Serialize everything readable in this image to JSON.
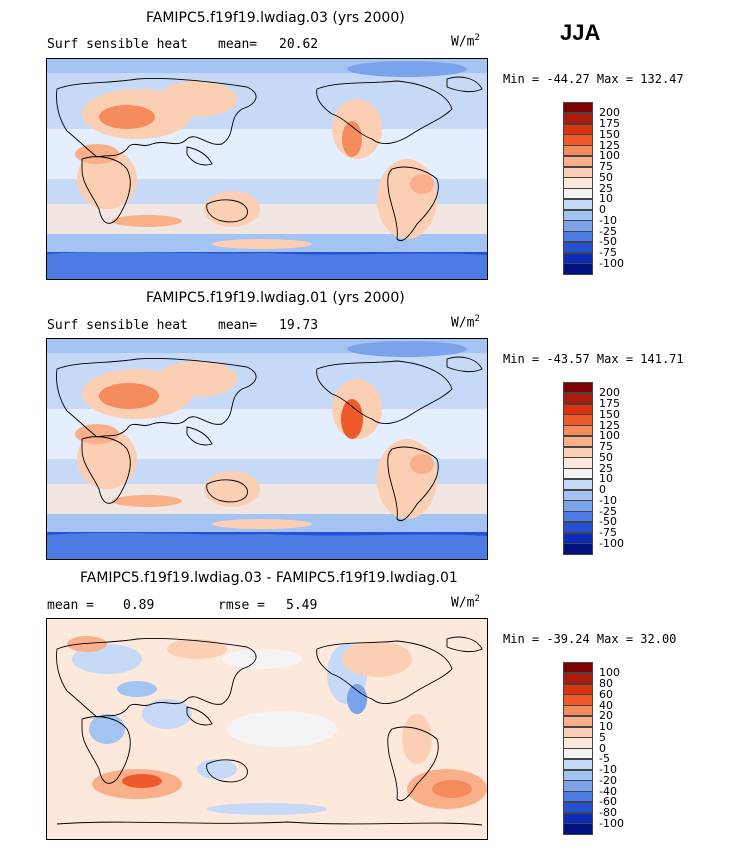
{
  "season": "JJA",
  "panels": [
    {
      "title": "FAMIPC5.f19f19.lwdiag.03 (yrs 2000)",
      "left_label": "Surf sensible heat",
      "stat1_label": "mean=",
      "stat1_value": "20.62",
      "stat2_label": "",
      "stat2_value": "",
      "units": "W/m",
      "units_sup": "2",
      "minmax": "Min = -44.27 Max = 132.47",
      "colorbar": {
        "labels": [
          "200",
          "175",
          "150",
          "125",
          "100",
          "75",
          "50",
          "25",
          "10",
          "0",
          "-10",
          "-25",
          "-50",
          "-75",
          "-100"
        ],
        "colors": [
          "#7f0000",
          "#b01a0a",
          "#d9340f",
          "#ef5a2b",
          "#f58c5e",
          "#f9b08a",
          "#fbcfb4",
          "#fde8dc",
          "#f4f4f4",
          "#c6daf7",
          "#a3c3f3",
          "#7aa3ec",
          "#4c7ce3",
          "#2551d6",
          "#0b2bbb",
          "#02137e"
        ]
      }
    },
    {
      "title": "FAMIPC5.f19f19.lwdiag.01 (yrs 2000)",
      "left_label": "Surf sensible heat",
      "stat1_label": "mean=",
      "stat1_value": "19.73",
      "stat2_label": "",
      "stat2_value": "",
      "units": "W/m",
      "units_sup": "2",
      "minmax": "Min = -43.57 Max = 141.71",
      "colorbar": {
        "labels": [
          "200",
          "175",
          "150",
          "125",
          "100",
          "75",
          "50",
          "25",
          "10",
          "0",
          "-10",
          "-25",
          "-50",
          "-75",
          "-100"
        ],
        "colors": [
          "#7f0000",
          "#b01a0a",
          "#d9340f",
          "#ef5a2b",
          "#f58c5e",
          "#f9b08a",
          "#fbcfb4",
          "#fde8dc",
          "#f4f4f4",
          "#c6daf7",
          "#a3c3f3",
          "#7aa3ec",
          "#4c7ce3",
          "#2551d6",
          "#0b2bbb",
          "#02137e"
        ]
      }
    },
    {
      "title": "FAMIPC5.f19f19.lwdiag.03 - FAMIPC5.f19f19.lwdiag.01",
      "left_label": "",
      "stat1_label": "mean =",
      "stat1_value": "0.89",
      "stat2_label": "rmse =",
      "stat2_value": "5.49",
      "units": "W/m",
      "units_sup": "2",
      "minmax": "Min = -39.24 Max = 32.00",
      "colorbar": {
        "labels": [
          "100",
          "80",
          "60",
          "40",
          "20",
          "10",
          "5",
          "0",
          "-5",
          "-10",
          "-20",
          "-40",
          "-60",
          "-80",
          "-100"
        ],
        "colors": [
          "#7f0000",
          "#b01a0a",
          "#d9340f",
          "#ef5a2b",
          "#f58c5e",
          "#f9b08a",
          "#fbcfb4",
          "#fde8dc",
          "#f4f4f4",
          "#c6daf7",
          "#a3c3f3",
          "#7aa3ec",
          "#4c7ce3",
          "#2551d6",
          "#0b2bbb",
          "#02137e"
        ]
      }
    }
  ]
}
